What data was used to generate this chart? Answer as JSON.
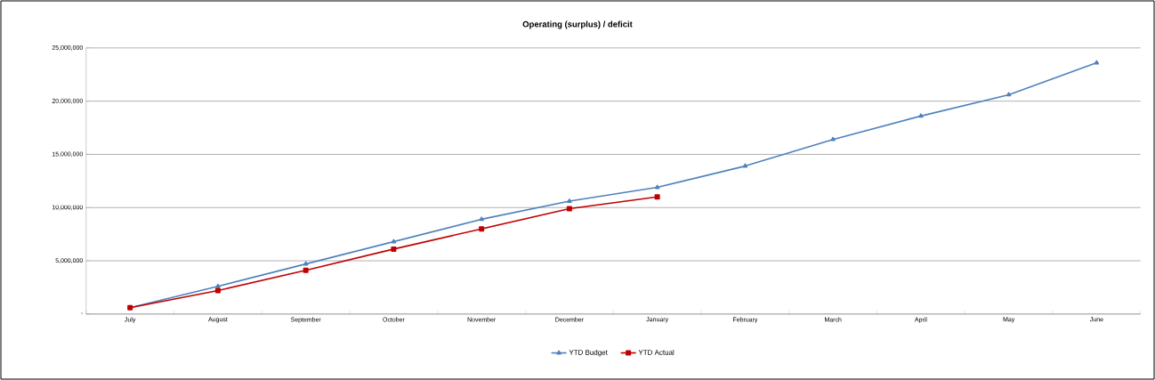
{
  "chart_data": {
    "type": "line",
    "title": "Operating (surplus) / deficit",
    "categories": [
      "July",
      "August",
      "September",
      "October",
      "November",
      "December",
      "January",
      "February",
      "March",
      "April",
      "May",
      "June"
    ],
    "series": [
      {
        "name": "YTD Budget",
        "color": "#4f81bd",
        "marker": "triangle",
        "values": [
          600000,
          2600000,
          4700000,
          6800000,
          8900000,
          10600000,
          11900000,
          13900000,
          16400000,
          18600000,
          20600000,
          23600000
        ]
      },
      {
        "name": "YTD Actual",
        "color": "#c00000",
        "marker": "square",
        "values": [
          600000,
          2200000,
          4100000,
          6100000,
          8000000,
          9900000,
          11000000,
          null,
          null,
          null,
          null,
          null
        ]
      }
    ],
    "ylim": [
      0,
      25000000
    ],
    "yticks": [
      {
        "value": 0,
        "label": "-"
      },
      {
        "value": 5000000,
        "label": "5,000,000"
      },
      {
        "value": 10000000,
        "label": "10,000,000"
      },
      {
        "value": 15000000,
        "label": "15,000,000"
      },
      {
        "value": 20000000,
        "label": "20,000,000"
      },
      {
        "value": 25000000,
        "label": "25,000,000"
      }
    ],
    "grid": "y",
    "legend": "bottom"
  }
}
